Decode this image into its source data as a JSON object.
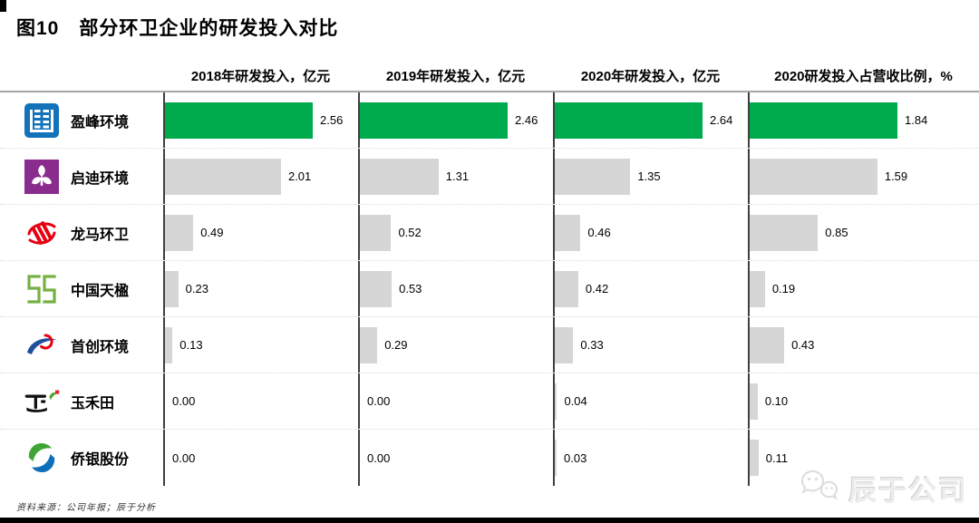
{
  "title": "图10　部分环卫企业的研发投入对比",
  "chart_data": {
    "type": "bar",
    "orientation": "horizontal",
    "title": "图10　部分环卫企业的研发投入对比",
    "categories": [
      "盈峰环境",
      "启迪环境",
      "龙马环卫",
      "中国天楹",
      "首创环境",
      "玉禾田",
      "侨银股份"
    ],
    "panels": [
      {
        "label": "2018年研发投入，亿元",
        "values": [
          2.56,
          2.01,
          0.49,
          0.23,
          0.13,
          0.0,
          0.0
        ]
      },
      {
        "label": "2019年研发投入，亿元",
        "values": [
          2.46,
          1.31,
          0.52,
          0.53,
          0.29,
          0.0,
          0.0
        ]
      },
      {
        "label": "2020年研发投入，亿元",
        "values": [
          2.64,
          1.35,
          0.46,
          0.42,
          0.33,
          0.04,
          0.03
        ]
      },
      {
        "label": "2020研发投入占营收比例，%",
        "values": [
          1.84,
          1.59,
          0.85,
          0.19,
          0.43,
          0.1,
          0.11
        ]
      }
    ],
    "highlighted_category": "盈峰环境",
    "value_format": "2-decimals",
    "grid": "row-separators-dotted",
    "colors": {
      "highlight": "#00AB4E",
      "default_bar": "#D6D6D6",
      "axis": "#404040"
    }
  },
  "companies": [
    {
      "name": "盈峰环境",
      "logo": "yingfeng",
      "logo_color": "#1272BA"
    },
    {
      "name": "启迪环境",
      "logo": "qidi",
      "logo_color": "#8A2B8E"
    },
    {
      "name": "龙马环卫",
      "logo": "longma",
      "logo_color": "#E60012"
    },
    {
      "name": "中国天楹",
      "logo": "tianying",
      "logo_color": "#76B043"
    },
    {
      "name": "首创环境",
      "logo": "capital",
      "logo_color": "#1F4E9C"
    },
    {
      "name": "玉禾田",
      "logo": "yuhetian",
      "logo_color": "#111111"
    },
    {
      "name": "侨银股份",
      "logo": "qiaoyin",
      "logo_color": "#3FA535"
    }
  ],
  "footer": {
    "source": "资料来源：公司年报；辰于分析"
  },
  "watermark": {
    "icon": "wechat-icon",
    "text": "辰于公司"
  }
}
